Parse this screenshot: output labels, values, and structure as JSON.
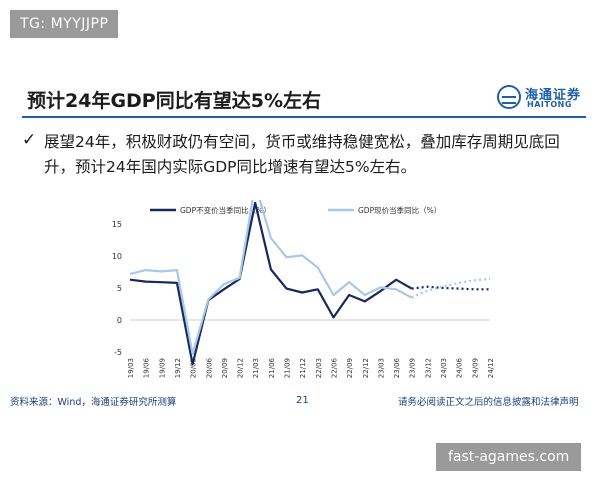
{
  "watermark_top": "TG: MYYJJPP",
  "watermark_bottom": "fast-agames.com",
  "slide": {
    "title": "预计24年GDP同比有望达5%左右",
    "logo_cn": "海通证券",
    "logo_en": "HAITONG",
    "bullet_check": "✓",
    "bullet": "展望24年，积极财政仍有空间，货币或维持稳健宽松，叠加库存周期见底回升，预计24年国内实际GDP同比增速有望达5%左右。"
  },
  "footer": {
    "source": "资料来源：Wind，海通证券研究所测算",
    "page": "21",
    "disclaimer": "请务必阅读正文之后的信息披露和法律声明"
  },
  "colors": {
    "series_real": "#16285e",
    "series_nominal": "#a7c8e8",
    "accent": "#1f5fa6"
  },
  "chart_data": {
    "type": "line",
    "ylim": [
      -5,
      15
    ],
    "yticks": [
      "15",
      "10",
      "5",
      "0",
      "-5"
    ],
    "x": [
      "19/03",
      "19/06",
      "19/09",
      "19/12",
      "20/03",
      "20/06",
      "20/09",
      "20/12",
      "21/03",
      "21/06",
      "21/09",
      "21/12",
      "22/03",
      "22/06",
      "22/09",
      "22/12",
      "23/03",
      "23/06",
      "23/09",
      "23/12",
      "24/03",
      "24/06",
      "24/09",
      "24/12"
    ],
    "series": [
      {
        "name": "GDP不变价当季同比（%）",
        "values": [
          6.3,
          6.0,
          5.9,
          5.8,
          -6.9,
          3.1,
          4.8,
          6.4,
          18.3,
          7.9,
          4.9,
          4.3,
          4.8,
          0.4,
          3.9,
          2.9,
          4.5,
          6.3,
          4.9,
          5.2,
          5.0,
          4.9,
          4.8,
          4.8
        ],
        "forecast_from_index": 18
      },
      {
        "name": "GDP现价当季同比（%）",
        "values": [
          7.2,
          7.8,
          7.6,
          7.8,
          -5.3,
          3.2,
          5.6,
          6.6,
          21.2,
          12.8,
          9.8,
          10.1,
          8.2,
          3.9,
          5.9,
          3.9,
          5.1,
          4.8,
          3.5,
          4.6,
          5.2,
          5.8,
          6.2,
          6.4
        ],
        "forecast_from_index": 18
      }
    ]
  }
}
